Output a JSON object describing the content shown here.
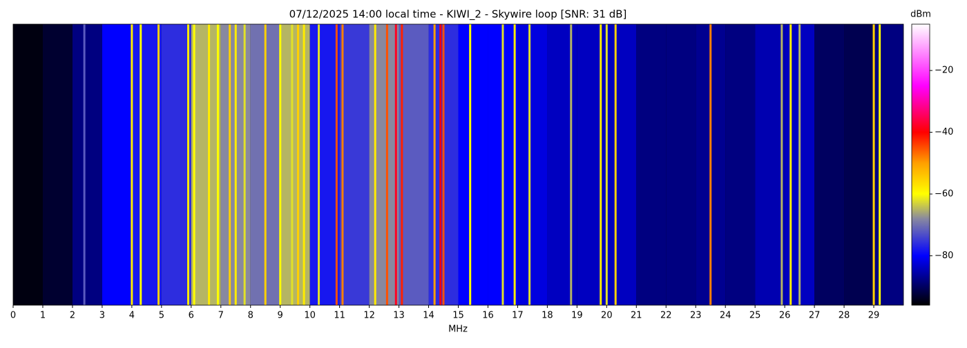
{
  "chart_data": {
    "type": "spectrogram",
    "title": "07/12/2025 14:00 local time - KIWI_2 - Skywire loop [SNR: 31 dB]",
    "xlabel": "MHz",
    "colorbar_label": "dBm",
    "xlim": [
      0,
      30
    ],
    "xticks": [
      0,
      1,
      2,
      3,
      4,
      5,
      6,
      7,
      8,
      9,
      10,
      11,
      12,
      13,
      14,
      15,
      16,
      17,
      18,
      19,
      20,
      21,
      22,
      23,
      24,
      25,
      26,
      27,
      28,
      29
    ],
    "clim": [
      -96,
      -5
    ],
    "cticks": [
      {
        "value": -80,
        "label": "−80"
      },
      {
        "value": -60,
        "label": "−60"
      },
      {
        "value": -40,
        "label": "−40"
      },
      {
        "value": -20,
        "label": "−20"
      }
    ],
    "colormap": [
      {
        "value": -96,
        "color": "#000000"
      },
      {
        "value": -88,
        "color": "#000080"
      },
      {
        "value": -80,
        "color": "#0000ff"
      },
      {
        "value": -68,
        "color": "#8888a0"
      },
      {
        "value": -60,
        "color": "#ffff00"
      },
      {
        "value": -50,
        "color": "#ffa000"
      },
      {
        "value": -40,
        "color": "#ff0000"
      },
      {
        "value": -25,
        "color": "#ff00ff"
      },
      {
        "value": -5,
        "color": "#ffffff"
      }
    ],
    "background": {
      "bins": [
        0,
        1,
        2,
        3,
        4,
        5,
        6,
        7,
        8,
        9,
        10,
        11,
        12,
        13,
        14,
        15,
        16,
        17,
        18,
        19,
        20,
        21,
        22,
        23,
        24,
        25,
        26,
        27,
        28,
        29,
        30
      ],
      "values": [
        -95,
        -93,
        -88,
        -80,
        -78,
        -76,
        -65,
        -68,
        -70,
        -65,
        -78,
        -75,
        -68,
        -72,
        -76,
        -80,
        -80,
        -82,
        -84,
        -84,
        -84,
        -88,
        -88,
        -87,
        -88,
        -85,
        -84,
        -90,
        -91,
        -88
      ]
    },
    "signals": {
      "x": [
        2.4,
        4.0,
        4.3,
        4.9,
        5.9,
        6.1,
        6.6,
        6.9,
        7.3,
        7.5,
        7.8,
        8.5,
        9.0,
        9.4,
        9.6,
        9.8,
        10.3,
        10.9,
        11.1,
        12.2,
        12.6,
        12.9,
        13.1,
        14.2,
        14.4,
        14.5,
        15.4,
        16.5,
        16.9,
        17.4,
        18.8,
        19.8,
        20.0,
        20.3,
        23.5,
        25.9,
        26.2,
        26.5,
        29.0,
        29.2
      ],
      "values": [
        -72,
        -58,
        -60,
        -55,
        -58,
        -60,
        -58,
        -60,
        -55,
        -58,
        -62,
        -55,
        -60,
        -62,
        -55,
        -58,
        -62,
        -45,
        -48,
        -58,
        -45,
        -38,
        -42,
        -50,
        -40,
        -45,
        -60,
        -62,
        -58,
        -62,
        -65,
        -58,
        -62,
        -55,
        -48,
        -65,
        -58,
        -65,
        -55,
        -60
      ]
    }
  }
}
